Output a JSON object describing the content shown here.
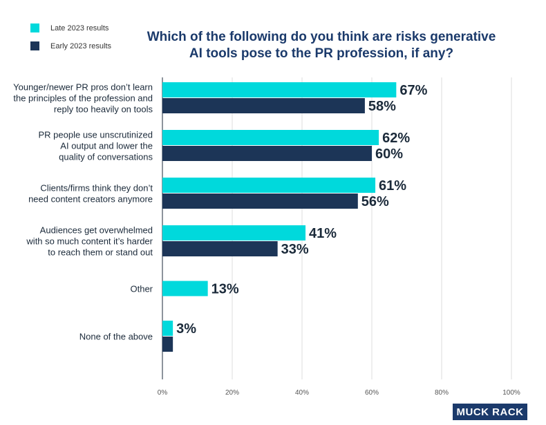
{
  "legend": [
    {
      "label": "Late 2023 results",
      "color": "#00d9dc"
    },
    {
      "label": "Early 2023 results",
      "color": "#1c3557"
    }
  ],
  "title_line1": "Which of the following do you think are risks generative",
  "title_line2": "AI tools pose to the PR profession, if any?",
  "logo": "MUCK RACK",
  "chart_data": {
    "type": "bar",
    "orientation": "horizontal",
    "title": "Which of the following do you think are risks generative AI tools pose to the PR profession, if any?",
    "categories": [
      [
        "Younger/newer PR pros don’t learn",
        "the principles of the profession and",
        "reply too heavily on tools"
      ],
      [
        "PR people use unscrutinized",
        "AI output and lower the",
        "quality of conversations"
      ],
      [
        "Clients/firms think they don’t",
        "need content creators anymore"
      ],
      [
        "Audiences get overwhelmed",
        "with so much content it’s harder",
        "to reach them or stand out"
      ],
      [
        "Other"
      ],
      [
        "None of the above"
      ]
    ],
    "series": [
      {
        "name": "Late 2023 results",
        "color": "#00d9dc",
        "values": [
          67,
          62,
          61,
          41,
          13,
          3
        ]
      },
      {
        "name": "Early 2023 results",
        "color": "#1c3557",
        "values": [
          58,
          60,
          56,
          33,
          null,
          3
        ]
      }
    ],
    "data_labels": [
      [
        "67%",
        "58%"
      ],
      [
        "62%",
        "60%"
      ],
      [
        "61%",
        "56%"
      ],
      [
        "41%",
        "33%"
      ],
      [
        "13%"
      ],
      [
        "3%"
      ]
    ],
    "xticks": [
      "0%",
      "20%",
      "40%",
      "60%",
      "80%",
      "100%"
    ],
    "xlim": [
      0,
      100
    ],
    "grid": true,
    "legend_position": "top-left"
  }
}
